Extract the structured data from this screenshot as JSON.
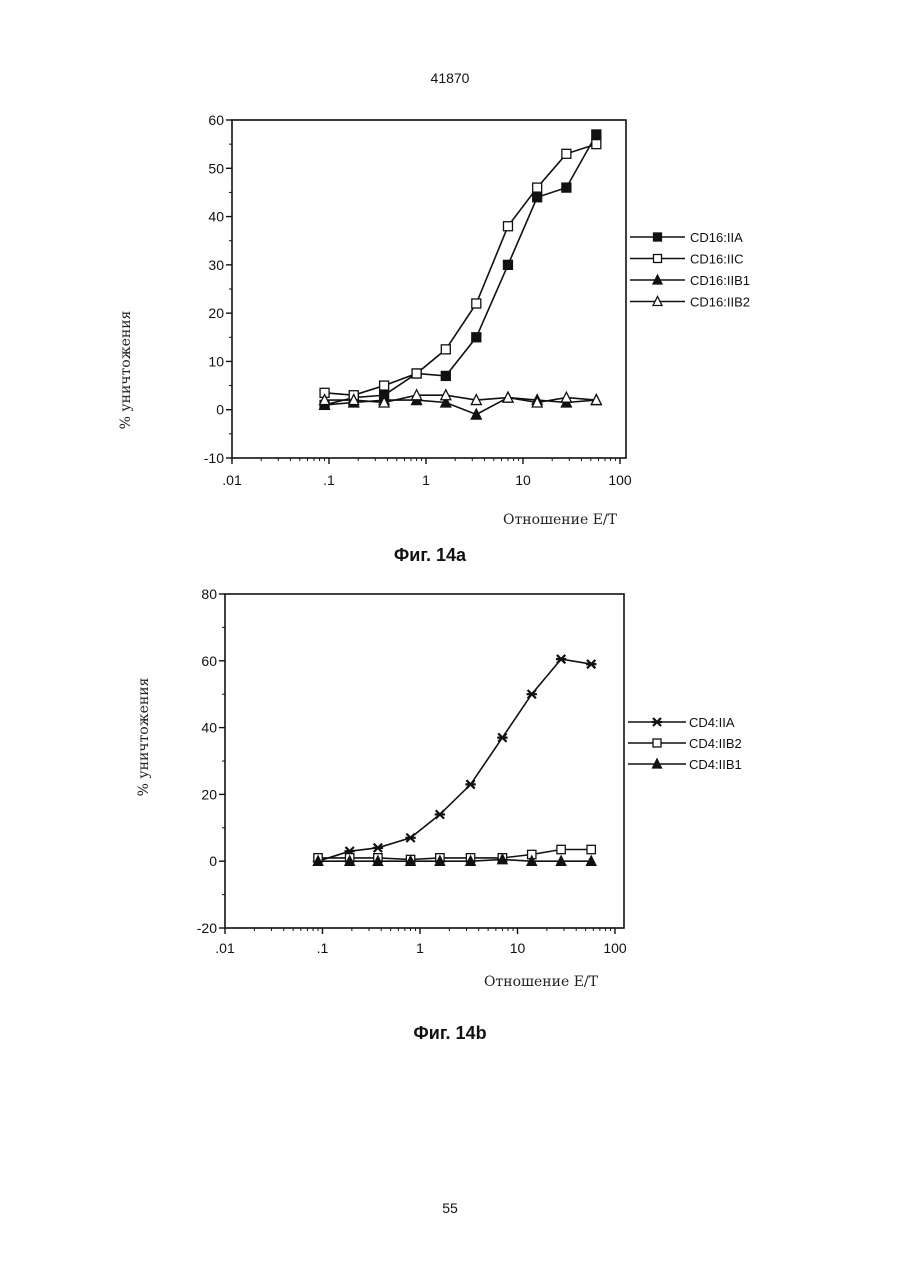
{
  "page": {
    "header": "41870",
    "page_number": "55"
  },
  "figures": [
    {
      "caption": "Фиг. 14a"
    },
    {
      "caption": "Фиг. 14b"
    }
  ],
  "chart_data": [
    {
      "type": "line",
      "title": "",
      "xlabel": "Отношение E/T",
      "ylabel": "% уничтожения",
      "x_scale": "log",
      "xlim": [
        0.01,
        100
      ],
      "ylim": [
        -10,
        60
      ],
      "x_ticks": [
        ".01",
        ".1",
        "1",
        "10",
        "100"
      ],
      "y_ticks": [
        "-10",
        "0",
        "10",
        "20",
        "30",
        "40",
        "50",
        "60"
      ],
      "grid": false,
      "legend_position": "right",
      "x": [
        0.09,
        0.18,
        0.37,
        0.8,
        1.6,
        3.3,
        7,
        14,
        28,
        57
      ],
      "series": [
        {
          "name": "CD16:IIA",
          "marker": "filled-square",
          "values": [
            1.0,
            2.5,
            3.0,
            7.5,
            7.0,
            15.0,
            30.0,
            44.0,
            46.0,
            57.0
          ]
        },
        {
          "name": "CD16:IIC",
          "marker": "open-square",
          "values": [
            3.5,
            3.0,
            5.0,
            7.5,
            12.5,
            22.0,
            38.0,
            46.0,
            53.0,
            55.0
          ]
        },
        {
          "name": "CD16:IIB1",
          "marker": "filled-triangle",
          "values": [
            1.0,
            1.5,
            2.0,
            2.0,
            1.5,
            -1.0,
            2.5,
            2.0,
            1.5,
            2.0
          ]
        },
        {
          "name": "CD16:IIB2",
          "marker": "open-triangle",
          "values": [
            2.0,
            2.0,
            1.5,
            3.0,
            3.0,
            2.0,
            2.5,
            1.5,
            2.5,
            2.0
          ]
        }
      ]
    },
    {
      "type": "line",
      "title": "",
      "xlabel": "Отношение E/T",
      "ylabel": "% уничтожения",
      "x_scale": "log",
      "xlim": [
        0.01,
        100
      ],
      "ylim": [
        -20,
        80
      ],
      "x_ticks": [
        ".01",
        ".1",
        "1",
        "10",
        "100"
      ],
      "y_ticks": [
        "-20",
        "0",
        "20",
        "40",
        "60",
        "80"
      ],
      "grid": false,
      "legend_position": "right",
      "x": [
        0.09,
        0.19,
        0.37,
        0.8,
        1.6,
        3.3,
        7,
        14,
        28,
        57
      ],
      "series": [
        {
          "name": "CD4:IIA",
          "marker": "asterisk",
          "values": [
            0,
            3,
            4,
            7,
            14,
            23,
            37,
            50,
            60.5,
            59
          ]
        },
        {
          "name": "CD4:IIB2",
          "marker": "open-square",
          "values": [
            1,
            1,
            1,
            0.5,
            1,
            1,
            1,
            2,
            3.5,
            3.5
          ]
        },
        {
          "name": "CD4:IIB1",
          "marker": "filled-triangle",
          "values": [
            0,
            0,
            0,
            0,
            0,
            0,
            0.5,
            0,
            0,
            0
          ]
        }
      ]
    }
  ]
}
